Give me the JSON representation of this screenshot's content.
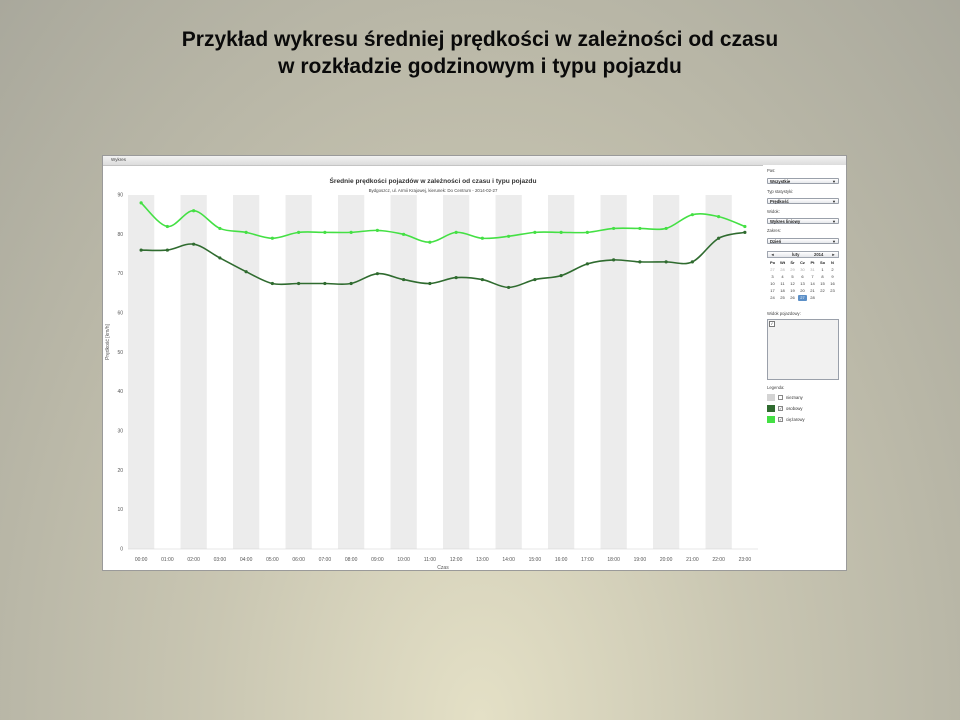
{
  "slide": {
    "title_line1": "Przykład wykresu średniej prędkości w zależności od czasu",
    "title_line2": "w rozkładzie godzinowym i typu pojazdu"
  },
  "app": {
    "tab_label": "Wykres"
  },
  "sidepanel": {
    "pas_label": "Pas:",
    "pas_value": "Wszystkie",
    "typ_label": "Typ statystyki:",
    "typ_value": "Prędkość",
    "widok_label": "Widok:",
    "widok_value": "Wykres liniowy",
    "zakres_label": "Zakres:",
    "zakres_value": "Dzień",
    "calendar": {
      "month": "luty",
      "year": "2014",
      "prev": "◄",
      "next": "►",
      "weekdays": [
        "Po",
        "Wt",
        "Śr",
        "Cz",
        "Pt",
        "So",
        "N"
      ],
      "weeks": [
        [
          "27",
          "28",
          "29",
          "30",
          "31",
          "1",
          "2"
        ],
        [
          "3",
          "4",
          "5",
          "6",
          "7",
          "8",
          "9"
        ],
        [
          "10",
          "11",
          "12",
          "13",
          "14",
          "15",
          "16"
        ],
        [
          "17",
          "18",
          "19",
          "20",
          "21",
          "22",
          "23"
        ],
        [
          "24",
          "25",
          "26",
          "27",
          "28",
          "",
          ""
        ]
      ],
      "selected_day": "27"
    },
    "view_label": "Widok pojazdowy:",
    "legend_label": "Legenda:",
    "legend": [
      {
        "name": "nieznany",
        "color": "#d4d4d4",
        "checked": false
      },
      {
        "name": "osobowy",
        "color": "#2f6b2f",
        "checked": true
      },
      {
        "name": "ciężarowy",
        "color": "#44e044",
        "checked": true
      }
    ]
  },
  "chart_data": {
    "type": "line",
    "title": "Średnie prędkości pojazdów w zależności od czasu i typu pojazdu",
    "subtitle": "Bydgoszcz, ul. Armii Krajowej, kierunek: Do Centrum - 2014-02-27",
    "xlabel": "Czas",
    "ylabel": "Prędkość [km/h]",
    "ylim": [
      0,
      90
    ],
    "yticks": [
      0,
      10,
      20,
      30,
      40,
      50,
      60,
      70,
      80,
      90
    ],
    "grid": "alternating vertical bands",
    "legend_placement": "right panel",
    "categories": [
      "00:00",
      "01:00",
      "02:00",
      "03:00",
      "04:00",
      "05:00",
      "06:00",
      "07:00",
      "08:00",
      "09:00",
      "10:00",
      "11:00",
      "12:00",
      "13:00",
      "14:00",
      "15:00",
      "16:00",
      "17:00",
      "18:00",
      "19:00",
      "20:00",
      "21:00",
      "22:00",
      "23:00"
    ],
    "series": [
      {
        "name": "osobowy",
        "color": "#2f6b2f",
        "values": [
          76,
          76,
          77.5,
          74,
          70.5,
          67.5,
          67.5,
          67.5,
          67.5,
          70,
          68.5,
          67.5,
          69,
          68.5,
          66.5,
          68.5,
          69.5,
          72.5,
          73.5,
          73,
          73,
          73,
          79,
          80.5
        ]
      },
      {
        "name": "ciężarowy",
        "color": "#44e044",
        "values": [
          88,
          82,
          86,
          81.5,
          80.5,
          79,
          80.5,
          80.5,
          80.5,
          81,
          80,
          78,
          80.5,
          79,
          79.5,
          80.5,
          80.5,
          80.5,
          81.5,
          81.5,
          81.5,
          85,
          84.5,
          82
        ]
      }
    ]
  }
}
